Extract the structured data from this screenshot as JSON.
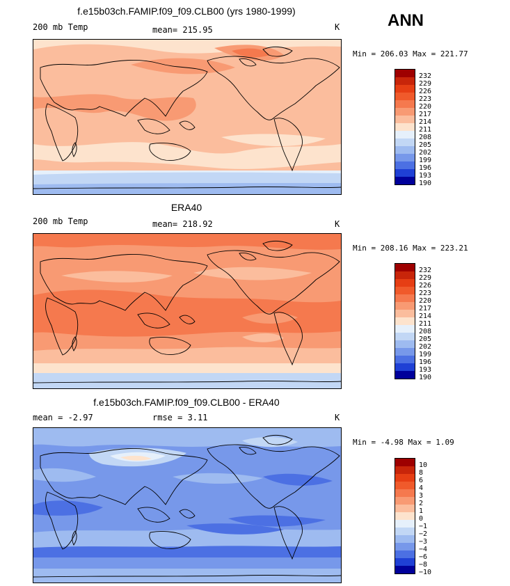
{
  "season": "ANN",
  "panels": [
    {
      "title": "f.e15b03ch.FAMIP.f09_f09.CLB00 (yrs 1980-1999)",
      "left_label": "200 mb Temp",
      "mid_label": "mean= 215.95",
      "units": "K",
      "minmax": "Min = 206.03 Max = 221.77",
      "scale": "abs"
    },
    {
      "title": "ERA40",
      "left_label": "200 mb Temp",
      "mid_label": "mean= 218.92",
      "units": "K",
      "minmax": "Min = 208.16 Max = 223.21",
      "scale": "abs"
    },
    {
      "title": "f.e15b03ch.FAMIP.f09_f09.CLB00 - ERA40",
      "left_label": "mean =   -2.97",
      "mid_label": "rmse =    3.11",
      "units": "K",
      "minmax": "Min =  -4.98 Max =    1.09",
      "scale": "diff"
    }
  ],
  "colorbars": {
    "abs_labels": [
      "232",
      "229",
      "226",
      "223",
      "220",
      "217",
      "214",
      "211",
      "208",
      "205",
      "202",
      "199",
      "196",
      "193",
      "190"
    ],
    "diff_labels": [
      "10",
      "8",
      "6",
      "4",
      "3",
      "2",
      "1",
      "0",
      "−1",
      "−2",
      "−3",
      "−4",
      "−6",
      "−8",
      "−10"
    ],
    "colors": [
      "#9e0000",
      "#c8250a",
      "#e63e14",
      "#f05a2b",
      "#f5794e",
      "#f89a73",
      "#fbbd9d",
      "#fde3cd",
      "#e6f0fb",
      "#c2d7f5",
      "#9ebbf0",
      "#7798ea",
      "#4c70e3",
      "#1f40d5",
      "#00009a"
    ]
  }
}
